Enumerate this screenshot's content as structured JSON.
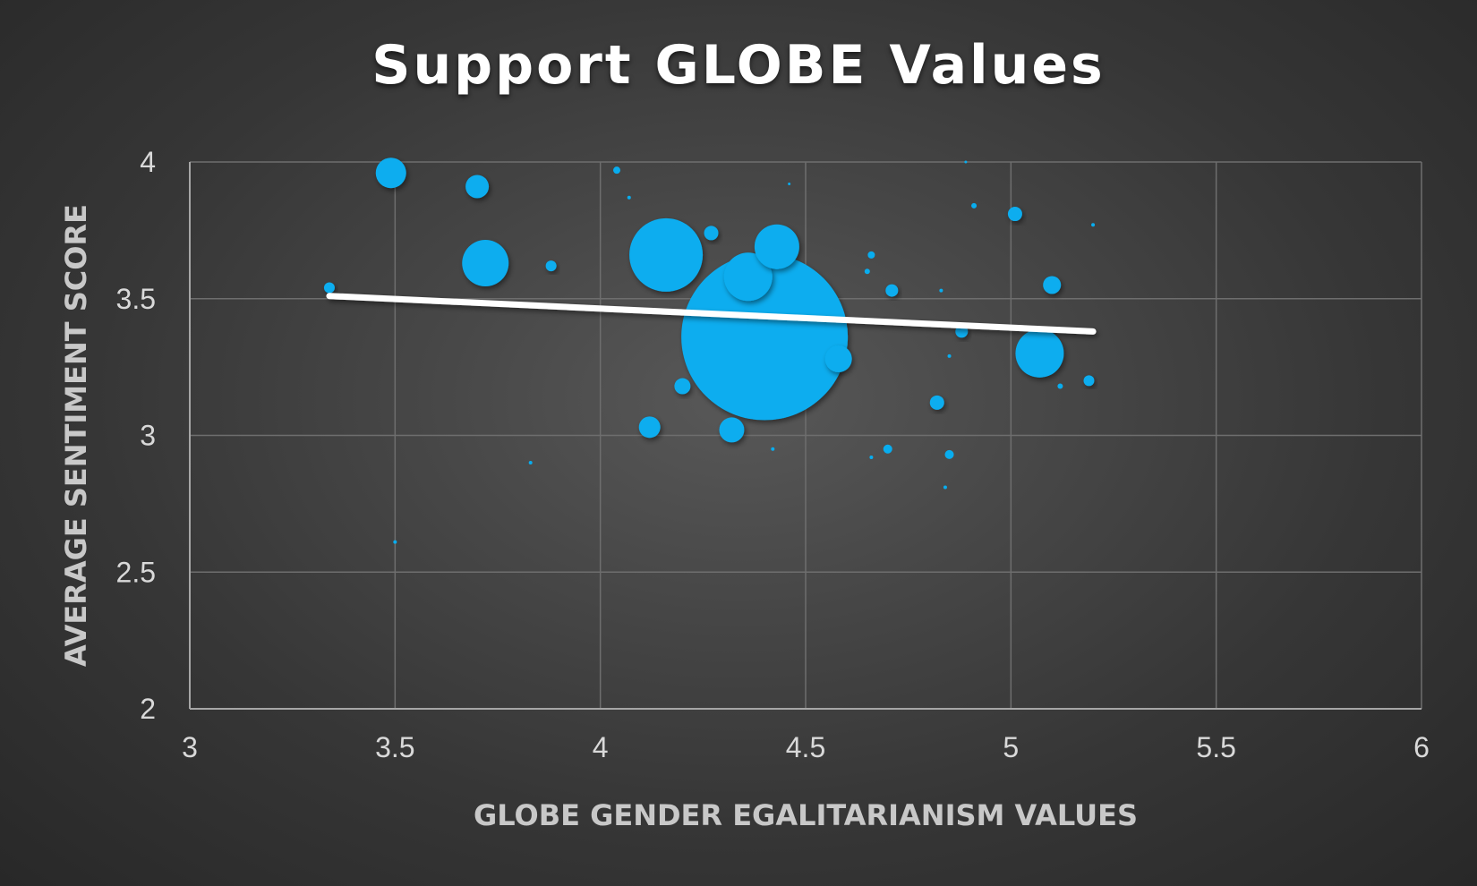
{
  "chart_data": {
    "type": "bubble",
    "title": "Support GLOBE Values",
    "xlabel": "GLOBE GENDER EGALITARIANISM VALUES",
    "ylabel": "AVERAGE SENTIMENT SCORE",
    "xlim": [
      3,
      6
    ],
    "ylim": [
      2,
      4
    ],
    "x_ticks": [
      "3",
      "3.5",
      "4",
      "4.5",
      "5",
      "5.5",
      "6"
    ],
    "y_ticks": [
      "2",
      "2.5",
      "3",
      "3.5",
      "4"
    ],
    "grid": true,
    "legend": "none",
    "colors": {
      "bubble": "#08adef",
      "trendline": "#ffffff",
      "grid": "#6e6e6e",
      "axis": "#a6a6a6"
    },
    "points": [
      {
        "x": 3.49,
        "y": 3.96,
        "size": 17
      },
      {
        "x": 3.7,
        "y": 3.91,
        "size": 13
      },
      {
        "x": 3.72,
        "y": 3.63,
        "size": 26
      },
      {
        "x": 3.34,
        "y": 3.54,
        "size": 6
      },
      {
        "x": 3.88,
        "y": 3.62,
        "size": 6
      },
      {
        "x": 3.5,
        "y": 2.61,
        "size": 2
      },
      {
        "x": 3.83,
        "y": 2.9,
        "size": 2
      },
      {
        "x": 4.04,
        "y": 3.97,
        "size": 4
      },
      {
        "x": 4.07,
        "y": 3.87,
        "size": 2
      },
      {
        "x": 4.16,
        "y": 3.66,
        "size": 41
      },
      {
        "x": 4.27,
        "y": 3.74,
        "size": 8
      },
      {
        "x": 4.43,
        "y": 3.69,
        "size": 25
      },
      {
        "x": 4.36,
        "y": 3.58,
        "size": 27
      },
      {
        "x": 4.4,
        "y": 3.36,
        "size": 93
      },
      {
        "x": 4.58,
        "y": 3.28,
        "size": 15
      },
      {
        "x": 4.2,
        "y": 3.18,
        "size": 9
      },
      {
        "x": 4.12,
        "y": 3.03,
        "size": 12
      },
      {
        "x": 4.32,
        "y": 3.02,
        "size": 14
      },
      {
        "x": 4.42,
        "y": 2.95,
        "size": 2
      },
      {
        "x": 4.46,
        "y": 3.92,
        "size": 1.5
      },
      {
        "x": 4.66,
        "y": 3.66,
        "size": 4
      },
      {
        "x": 4.65,
        "y": 3.6,
        "size": 3
      },
      {
        "x": 4.71,
        "y": 3.53,
        "size": 7
      },
      {
        "x": 4.83,
        "y": 3.53,
        "size": 2
      },
      {
        "x": 4.88,
        "y": 3.38,
        "size": 7
      },
      {
        "x": 4.85,
        "y": 3.29,
        "size": 2
      },
      {
        "x": 4.82,
        "y": 3.12,
        "size": 8
      },
      {
        "x": 4.7,
        "y": 2.95,
        "size": 5
      },
      {
        "x": 4.66,
        "y": 2.92,
        "size": 2
      },
      {
        "x": 4.85,
        "y": 2.93,
        "size": 5
      },
      {
        "x": 4.84,
        "y": 2.81,
        "size": 2
      },
      {
        "x": 4.89,
        "y": 4.0,
        "size": 1.5
      },
      {
        "x": 4.91,
        "y": 3.84,
        "size": 3
      },
      {
        "x": 5.01,
        "y": 3.81,
        "size": 8
      },
      {
        "x": 5.1,
        "y": 3.55,
        "size": 10
      },
      {
        "x": 5.07,
        "y": 3.3,
        "size": 27
      },
      {
        "x": 5.12,
        "y": 3.18,
        "size": 3
      },
      {
        "x": 5.19,
        "y": 3.2,
        "size": 6
      },
      {
        "x": 5.2,
        "y": 3.77,
        "size": 2
      }
    ],
    "trendline": {
      "x": [
        3.34,
        5.2
      ],
      "y": [
        3.51,
        3.38
      ]
    }
  }
}
